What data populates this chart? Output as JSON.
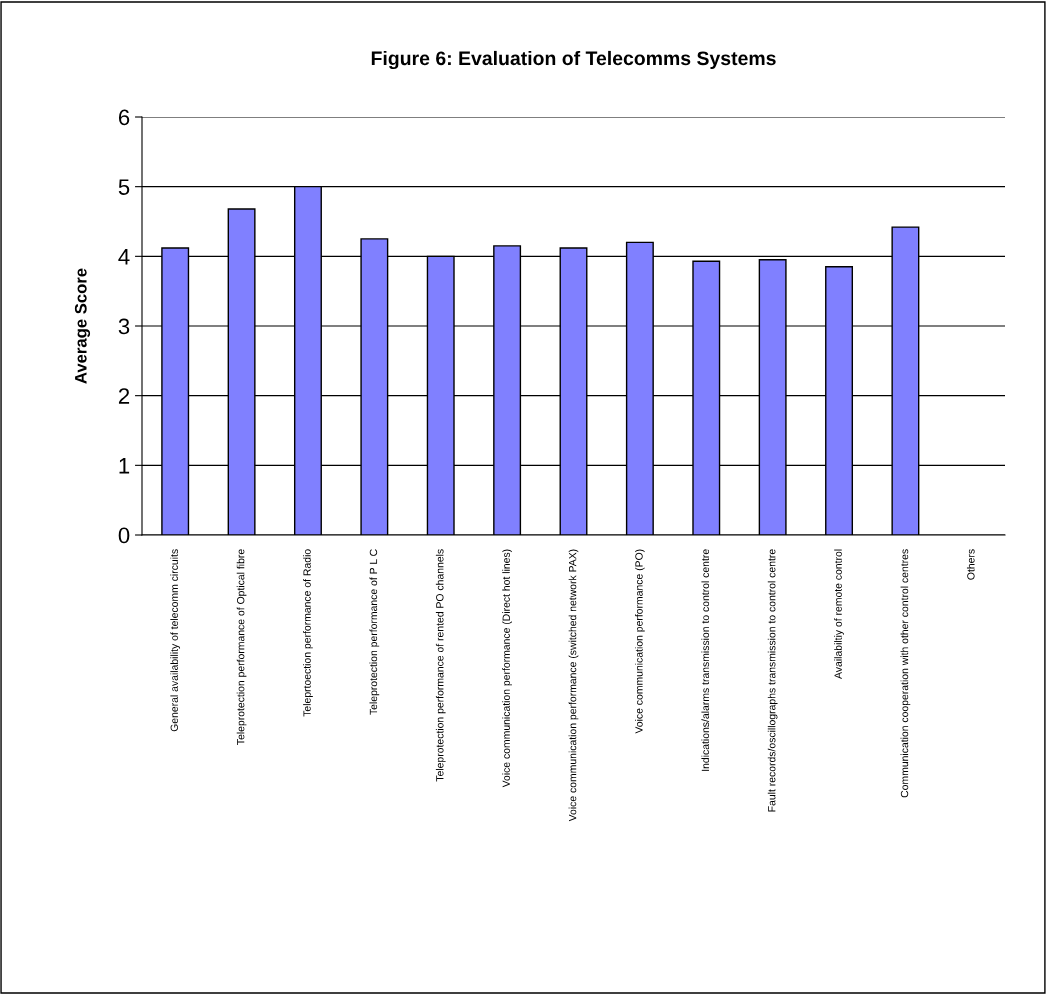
{
  "chart_data": {
    "type": "bar",
    "title": "Figure 6: Evaluation of Telecomms Systems",
    "ylabel": "Average Score",
    "categories": [
      "General availability of telecomm circuits",
      "Teleprotection performance of Optical fibre",
      "Teleprtoection performance of Radio",
      "Teleprotection performance of P L C",
      "Teleprotection performance of rented PO channels",
      "Voice communication performance (Direct hot lines)",
      "Voice communication performance (switched network PAX)",
      "Voice communication performance (PO)",
      "Indications/alarms transmission to control centre",
      "Fault records/oscillographs transmission to control centre",
      "Availabiltiy of remote control",
      "Communication cooperation with other control centres",
      "Others"
    ],
    "values": [
      4.12,
      4.68,
      5.0,
      4.25,
      4.0,
      4.15,
      4.12,
      4.2,
      3.93,
      3.95,
      3.85,
      4.42,
      null
    ],
    "color": "#8080ff",
    "ylim": [
      0,
      6
    ],
    "yticks": [
      0,
      1,
      2,
      3,
      4,
      5,
      6
    ],
    "grid": "y"
  }
}
